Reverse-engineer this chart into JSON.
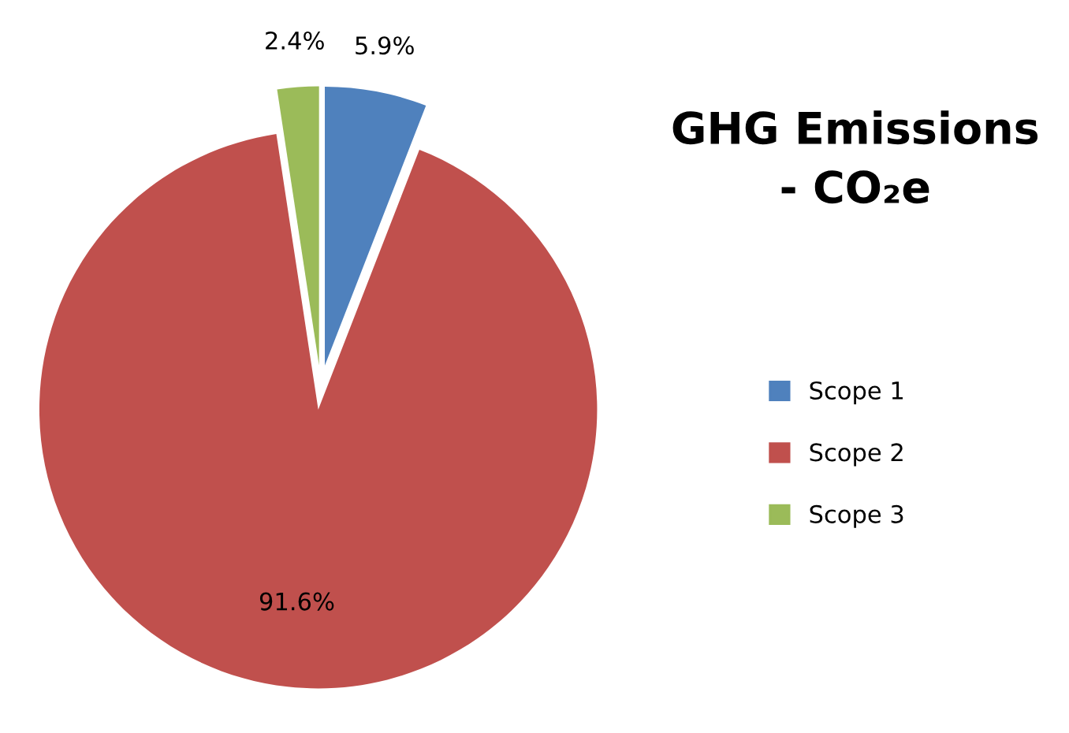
{
  "chart_data": {
    "type": "pie",
    "title": "GHG Emissions\n- CO₂e",
    "categories": [
      "Scope 1",
      "Scope 2",
      "Scope 3"
    ],
    "values": [
      5.9,
      91.6,
      2.4
    ],
    "value_labels": [
      "5.9%",
      "91.6%",
      "2.4%"
    ],
    "colors": [
      "#4f81bd",
      "#c0504d",
      "#9bbb59"
    ],
    "legend": "right"
  }
}
